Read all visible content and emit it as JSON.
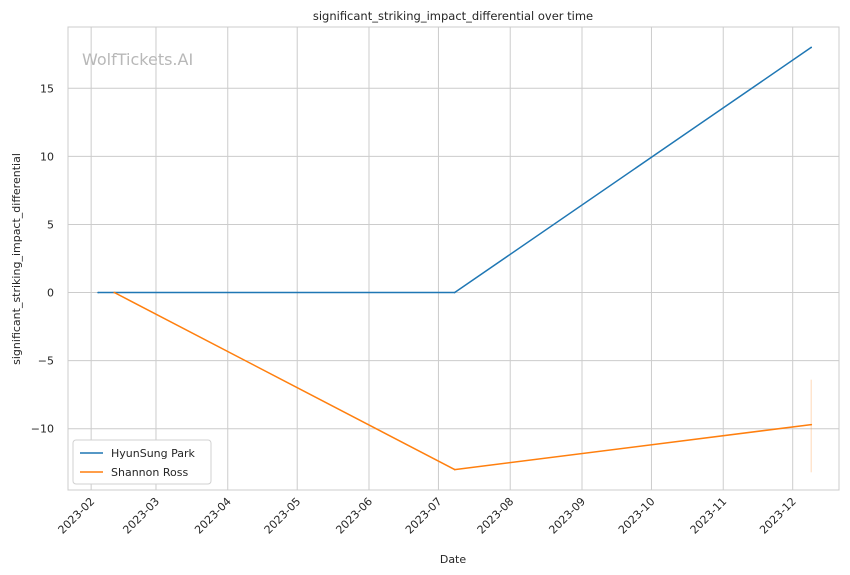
{
  "chart_data": {
    "type": "line",
    "title": "significant_striking_impact_differential over time",
    "xlabel": "Date",
    "ylabel": "significant_striking_impact_differential",
    "watermark": "WolfTickets.AI",
    "x_ticks": [
      "2023-02",
      "2023-03",
      "2023-04",
      "2023-05",
      "2023-06",
      "2023-07",
      "2023-08",
      "2023-09",
      "2023-10",
      "2023-11",
      "2023-12"
    ],
    "y_ticks": [
      {
        "value": 15,
        "label": "15"
      },
      {
        "value": 10,
        "label": "10"
      },
      {
        "value": 5,
        "label": "5"
      },
      {
        "value": 0,
        "label": "0"
      },
      {
        "value": -5,
        "label": "−5"
      },
      {
        "value": -10,
        "label": "−10"
      }
    ],
    "xlim": [
      "2023-01-22",
      "2023-12-21"
    ],
    "ylim": [
      -14.5,
      19.5
    ],
    "grid": true,
    "legend_position": "lower-left",
    "series": [
      {
        "name": "HyunSung Park",
        "color": "#1f77b4",
        "points": [
          {
            "x": "2023-02-04",
            "y": 0
          },
          {
            "x": "2023-07-08",
            "y": 0
          },
          {
            "x": "2023-12-09",
            "y": 18
          }
        ]
      },
      {
        "name": "Shannon Ross",
        "color": "#ff7f0e",
        "points": [
          {
            "x": "2023-02-11",
            "y": 0
          },
          {
            "x": "2023-07-08",
            "y": -13
          },
          {
            "x": "2023-12-09",
            "y": -9.7
          }
        ],
        "band": {
          "x": "2023-12-09",
          "y_low": -13.2,
          "y_high": -6.4
        }
      }
    ]
  }
}
